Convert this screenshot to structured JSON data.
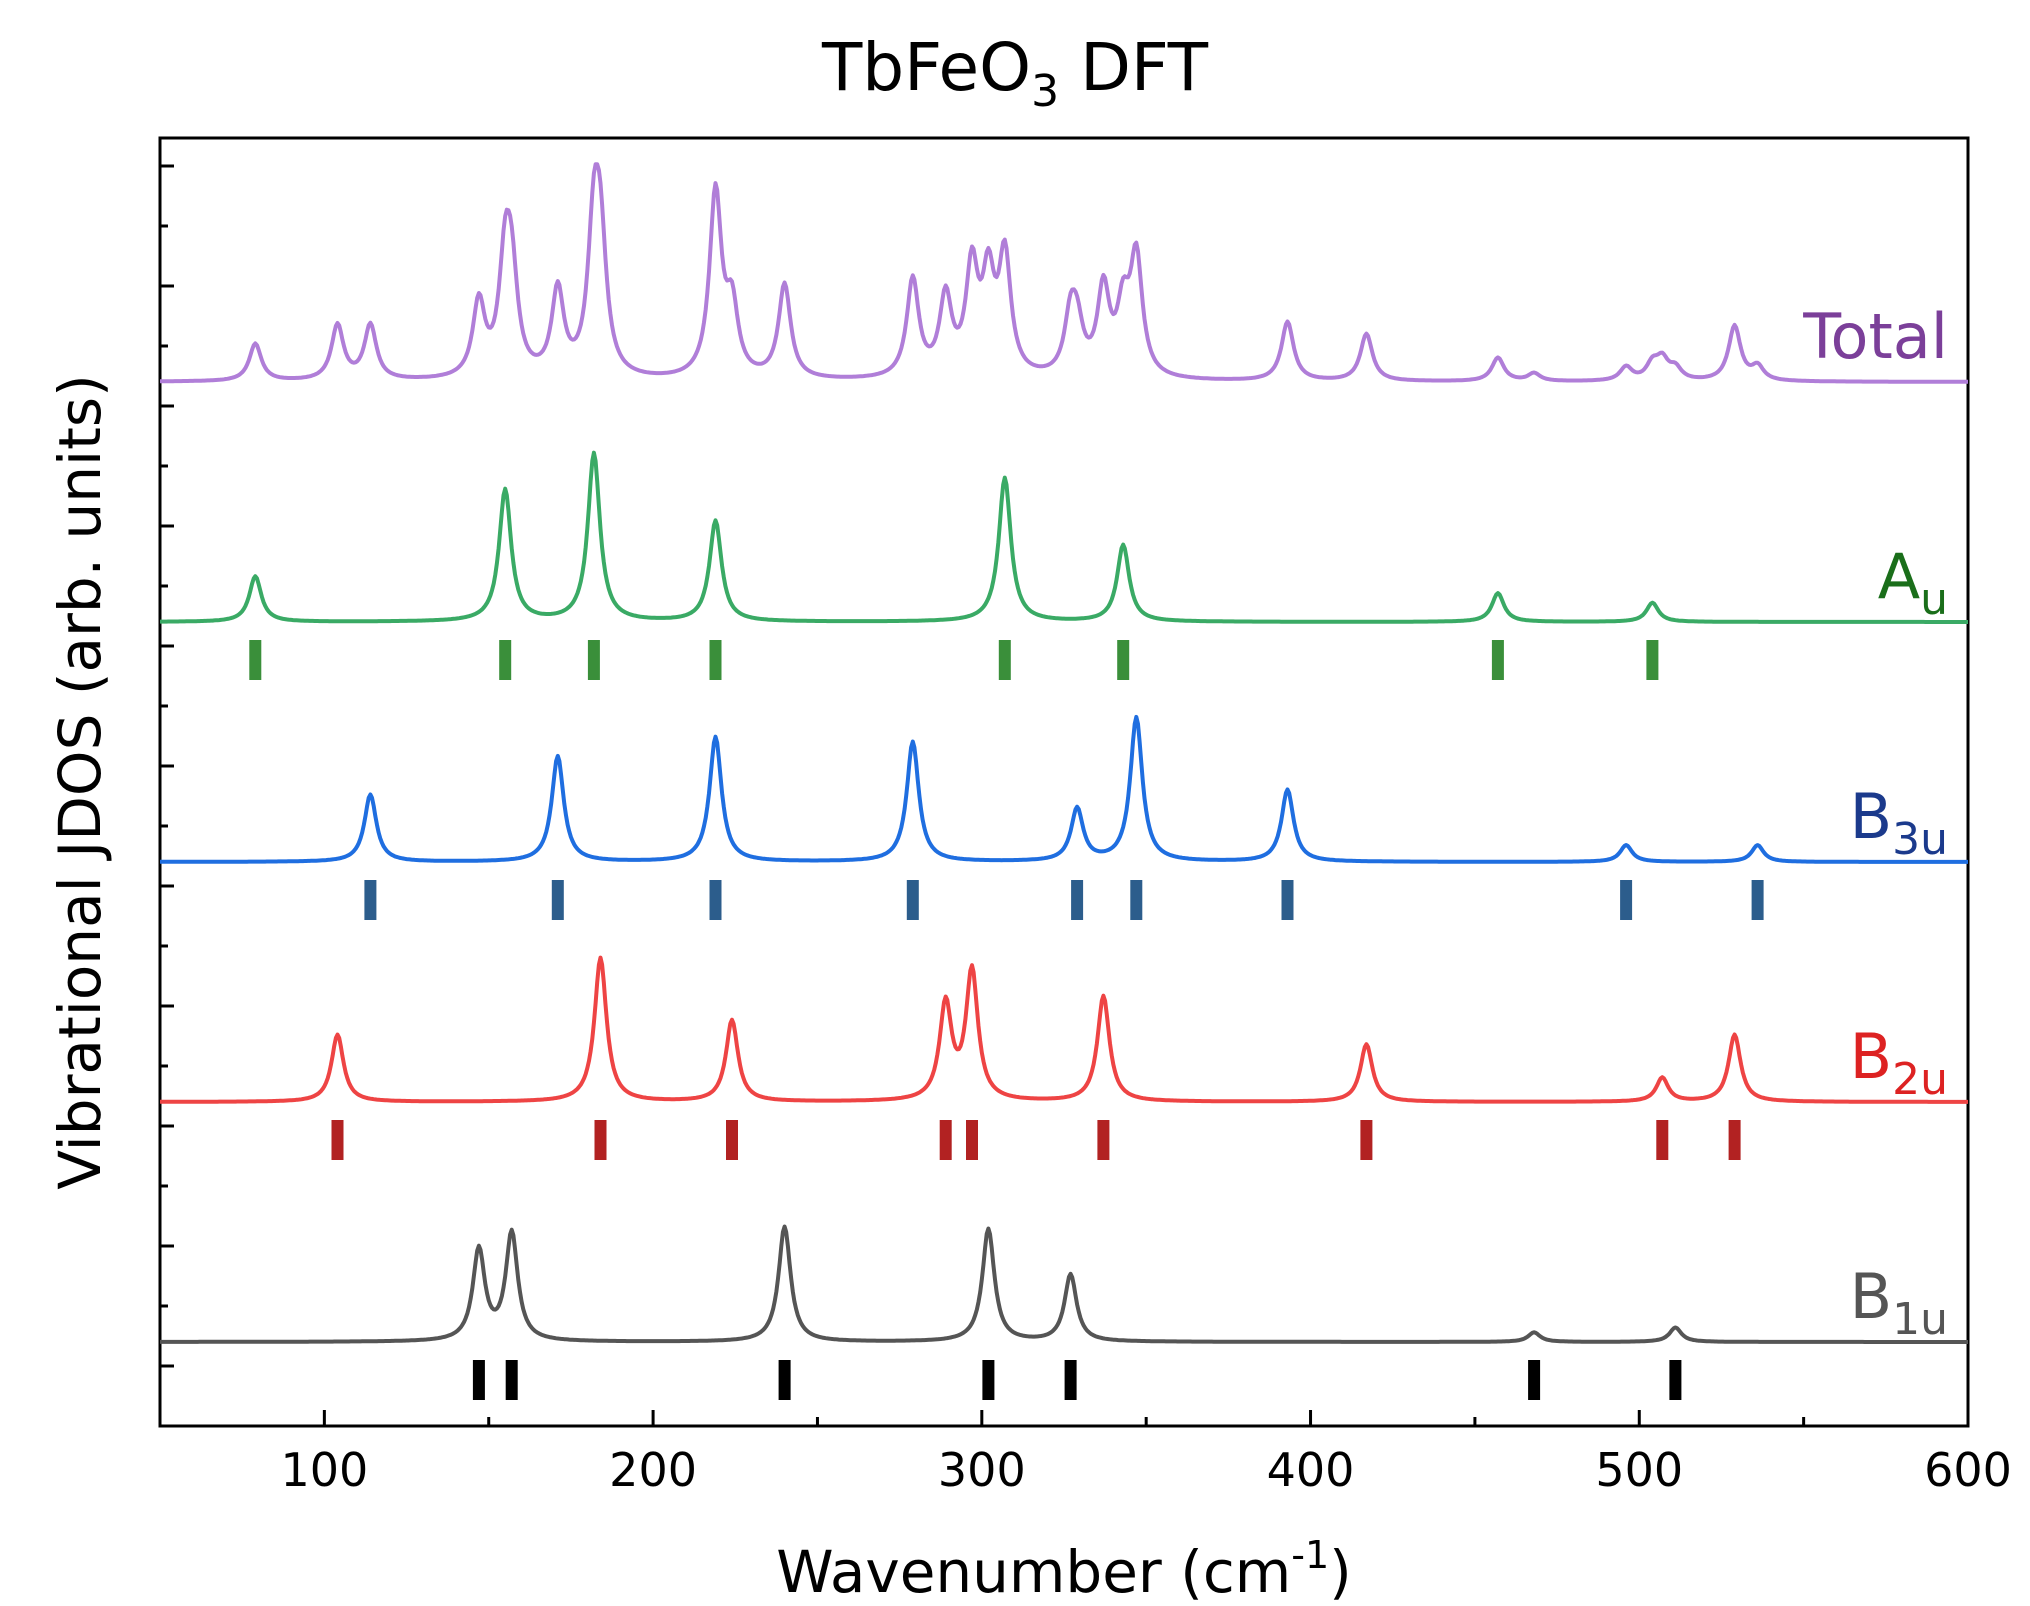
{
  "chart_data": {
    "type": "line",
    "title": {
      "main": "TbFeO",
      "sub": "3",
      "suffix": " DFT"
    },
    "xlabel": {
      "main": "Wavenumber (cm",
      "sup": "-1",
      "suffix": ")"
    },
    "ylabel": "Vibrational JDOS (arb. units)",
    "xlim": [
      50,
      600
    ],
    "xticks": [
      100,
      200,
      300,
      400,
      500,
      600
    ],
    "tick_labels": [
      "100",
      "200",
      "300",
      "400",
      "500",
      "600"
    ],
    "yticks_unlabeled": true,
    "peak_width_hwhm": 2.2,
    "series": [
      {
        "name": "B1u",
        "label_main": "B",
        "label_sub": "1u",
        "color": "#555555",
        "mark_color": "#000000",
        "offset": 0.0,
        "modes": [
          147,
          157,
          240,
          302,
          327,
          468,
          511
        ],
        "amps": [
          0.38,
          0.45,
          0.48,
          0.47,
          0.28,
          0.04,
          0.06
        ]
      },
      {
        "name": "B2u",
        "label_main": "B",
        "label_sub": "2u",
        "color": "#ee4444",
        "mark_color": "#b22222",
        "offset": 1.0,
        "modes": [
          104,
          184,
          224,
          289,
          297,
          337,
          417,
          507,
          529
        ],
        "amps": [
          0.28,
          0.6,
          0.34,
          0.4,
          0.54,
          0.44,
          0.24,
          0.1,
          0.28
        ]
      },
      {
        "name": "B3u",
        "label_main": "B",
        "label_sub": "3u",
        "color": "#1f6ee0",
        "mark_color": "#2c5d8c",
        "offset": 2.0,
        "modes": [
          114,
          171,
          219,
          279,
          329,
          347,
          393,
          496,
          536
        ],
        "amps": [
          0.28,
          0.44,
          0.52,
          0.5,
          0.22,
          0.6,
          0.3,
          0.07,
          0.07
        ]
      },
      {
        "name": "Au",
        "label_main": "A",
        "label_sub": "u",
        "color": "#3aaa65",
        "mark_color": "#3a8f3a",
        "offset": 3.0,
        "modes": [
          79,
          155,
          182,
          219,
          307,
          343,
          457,
          504
        ],
        "amps": [
          0.19,
          0.55,
          0.7,
          0.42,
          0.6,
          0.32,
          0.12,
          0.08
        ]
      },
      {
        "name": "Total",
        "label_main": "Total",
        "label_sub": "",
        "color": "#b07ed8",
        "mark_color": "#b07ed8",
        "offset": 4.0,
        "sum_of_all": true,
        "scale": 0.82
      }
    ]
  }
}
